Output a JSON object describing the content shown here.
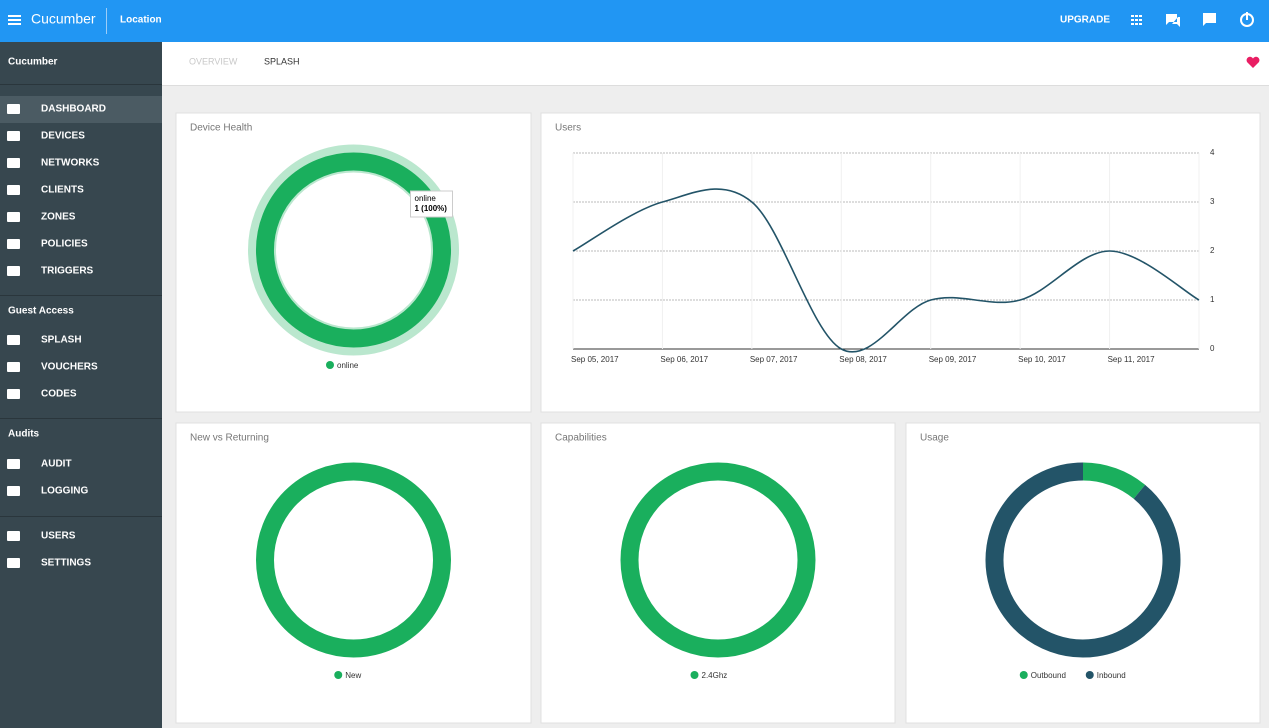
{
  "header": {
    "app_name": "Cucumber",
    "location": "Location",
    "upgrade": "UPGRADE"
  },
  "sidebar": {
    "title": "Cucumber",
    "main": [
      "DASHBOARD",
      "DEVICES",
      "NETWORKS",
      "CLIENTS",
      "ZONES",
      "POLICIES",
      "TRIGGERS"
    ],
    "guest_access": {
      "heading": "Guest Access",
      "items": [
        "SPLASH",
        "VOUCHERS",
        "CODES"
      ]
    },
    "audits": {
      "heading": "Audits",
      "items": [
        "AUDIT",
        "LOGGING"
      ]
    },
    "admin": [
      "USERS",
      "SETTINGS"
    ]
  },
  "tabs": [
    "OVERVIEW",
    "SPLASH"
  ],
  "chart_data": [
    {
      "type": "donut",
      "title": "Device Health",
      "categories": [
        "online"
      ],
      "values": [
        1
      ],
      "value_labels": [
        "1 (100%)"
      ],
      "colors": [
        "#1aaf5d"
      ],
      "tooltip": true
    },
    {
      "type": "line",
      "title": "Users",
      "categories": [
        "Sep 05, 2017",
        "Sep 06, 2017",
        "Sep 07, 2017",
        "Sep 08, 2017",
        "Sep 09, 2017",
        "Sep 10, 2017",
        "Sep 11, 2017",
        null
      ],
      "values": [
        2,
        3,
        3,
        0,
        1,
        1,
        2,
        1
      ],
      "color": "#235468",
      "ylim": [
        0,
        4
      ],
      "yticks": [
        0,
        1,
        2,
        3,
        4
      ],
      "grid": true
    },
    {
      "type": "donut",
      "title": "New vs Returning",
      "categories": [
        "New"
      ],
      "values": [
        1
      ],
      "colors": [
        "#1aaf5d"
      ]
    },
    {
      "type": "donut",
      "title": "Capabilities",
      "categories": [
        "2.4Ghz"
      ],
      "values": [
        1
      ],
      "colors": [
        "#1aaf5d"
      ]
    },
    {
      "type": "donut",
      "title": "Usage",
      "categories": [
        "Outbound",
        "Inbound"
      ],
      "values": [
        11,
        89
      ],
      "colors": [
        "#1aaf5d",
        "#235468"
      ]
    }
  ]
}
